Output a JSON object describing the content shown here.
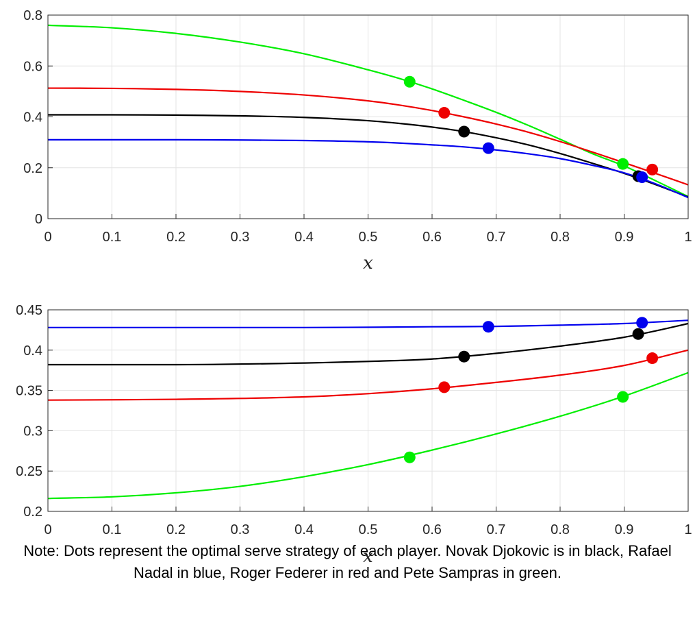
{
  "chart_data": [
    {
      "type": "line",
      "xlabel": "x",
      "ylabel": "",
      "xlim": [
        0,
        1
      ],
      "ylim": [
        0,
        0.8
      ],
      "xticks": [
        "0",
        "0.1",
        "0.2",
        "0.3",
        "0.4",
        "0.5",
        "0.6",
        "0.7",
        "0.8",
        "0.9",
        "1"
      ],
      "yticks": [
        "0",
        "0.2",
        "0.4",
        "0.6",
        "0.8"
      ],
      "grid": true,
      "series": [
        {
          "color": "#00ee00",
          "x": [
            0,
            0.1,
            0.2,
            0.3,
            0.4,
            0.5,
            0.55,
            0.6,
            0.65,
            0.7,
            0.75,
            0.8,
            0.85,
            0.9,
            0.95,
            1
          ],
          "y": [
            0.76,
            0.75,
            0.728,
            0.694,
            0.648,
            0.585,
            0.55,
            0.51,
            0.465,
            0.418,
            0.367,
            0.312,
            0.256,
            0.207,
            0.148,
            0.087
          ],
          "dots": [
            {
              "x": 0.565,
              "y": 0.538
            },
            {
              "x": 0.898,
              "y": 0.215
            }
          ]
        },
        {
          "color": "#ee0000",
          "x": [
            0,
            0.1,
            0.2,
            0.3,
            0.4,
            0.5,
            0.55,
            0.6,
            0.65,
            0.7,
            0.75,
            0.8,
            0.85,
            0.9,
            0.95,
            1
          ],
          "y": [
            0.513,
            0.512,
            0.508,
            0.5,
            0.486,
            0.463,
            0.446,
            0.425,
            0.4,
            0.372,
            0.34,
            0.303,
            0.262,
            0.22,
            0.177,
            0.133
          ],
          "dots": [
            {
              "x": 0.619,
              "y": 0.416
            },
            {
              "x": 0.944,
              "y": 0.193
            }
          ]
        },
        {
          "color": "#000000",
          "x": [
            0,
            0.1,
            0.2,
            0.3,
            0.4,
            0.5,
            0.55,
            0.6,
            0.65,
            0.7,
            0.75,
            0.8,
            0.85,
            0.9,
            0.95,
            1
          ],
          "y": [
            0.408,
            0.408,
            0.407,
            0.404,
            0.398,
            0.385,
            0.374,
            0.36,
            0.342,
            0.318,
            0.29,
            0.256,
            0.218,
            0.178,
            0.133,
            0.085
          ],
          "dots": [
            {
              "x": 0.65,
              "y": 0.342
            },
            {
              "x": 0.922,
              "y": 0.167
            }
          ]
        },
        {
          "color": "#0000ee",
          "x": [
            0,
            0.1,
            0.2,
            0.3,
            0.4,
            0.5,
            0.55,
            0.6,
            0.65,
            0.7,
            0.75,
            0.8,
            0.85,
            0.9,
            0.95,
            1
          ],
          "y": [
            0.31,
            0.31,
            0.31,
            0.309,
            0.307,
            0.302,
            0.297,
            0.29,
            0.282,
            0.27,
            0.255,
            0.236,
            0.21,
            0.18,
            0.136,
            0.083
          ],
          "dots": [
            {
              "x": 0.688,
              "y": 0.277
            },
            {
              "x": 0.928,
              "y": 0.163
            }
          ]
        }
      ]
    },
    {
      "type": "line",
      "xlabel": "x",
      "ylabel": "",
      "xlim": [
        0,
        1
      ],
      "ylim": [
        0.2,
        0.45
      ],
      "xticks": [
        "0",
        "0.1",
        "0.2",
        "0.3",
        "0.4",
        "0.5",
        "0.6",
        "0.7",
        "0.8",
        "0.9",
        "1"
      ],
      "yticks": [
        "0.2",
        "0.25",
        "0.3",
        "0.35",
        "0.4",
        "0.45"
      ],
      "grid": true,
      "series": [
        {
          "color": "#0000ee",
          "x": [
            0,
            0.2,
            0.4,
            0.6,
            0.7,
            0.8,
            0.9,
            1
          ],
          "y": [
            0.428,
            0.428,
            0.428,
            0.429,
            0.4295,
            0.431,
            0.433,
            0.437
          ],
          "dots": [
            {
              "x": 0.688,
              "y": 0.429
            },
            {
              "x": 0.928,
              "y": 0.434
            }
          ]
        },
        {
          "color": "#000000",
          "x": [
            0,
            0.2,
            0.4,
            0.5,
            0.6,
            0.7,
            0.8,
            0.9,
            0.95,
            1
          ],
          "y": [
            0.382,
            0.382,
            0.384,
            0.386,
            0.389,
            0.396,
            0.405,
            0.416,
            0.424,
            0.433
          ],
          "dots": [
            {
              "x": 0.65,
              "y": 0.392
            },
            {
              "x": 0.922,
              "y": 0.42
            }
          ]
        },
        {
          "color": "#ee0000",
          "x": [
            0,
            0.2,
            0.4,
            0.5,
            0.6,
            0.7,
            0.8,
            0.9,
            1
          ],
          "y": [
            0.338,
            0.339,
            0.342,
            0.346,
            0.352,
            0.36,
            0.369,
            0.381,
            0.4
          ],
          "dots": [
            {
              "x": 0.619,
              "y": 0.354
            },
            {
              "x": 0.944,
              "y": 0.39
            }
          ]
        },
        {
          "color": "#00ee00",
          "x": [
            0,
            0.1,
            0.2,
            0.3,
            0.4,
            0.5,
            0.6,
            0.7,
            0.8,
            0.9,
            1
          ],
          "y": [
            0.216,
            0.218,
            0.223,
            0.231,
            0.243,
            0.258,
            0.276,
            0.296,
            0.318,
            0.343,
            0.372
          ],
          "dots": [
            {
              "x": 0.565,
              "y": 0.267
            },
            {
              "x": 0.898,
              "y": 0.342
            }
          ]
        }
      ]
    }
  ],
  "note": "Note: Dots represent the optimal serve strategy of each player. Novak Djokovic is in black, Rafael Nadal in blue, Roger Federer in red and Pete Sampras in green."
}
